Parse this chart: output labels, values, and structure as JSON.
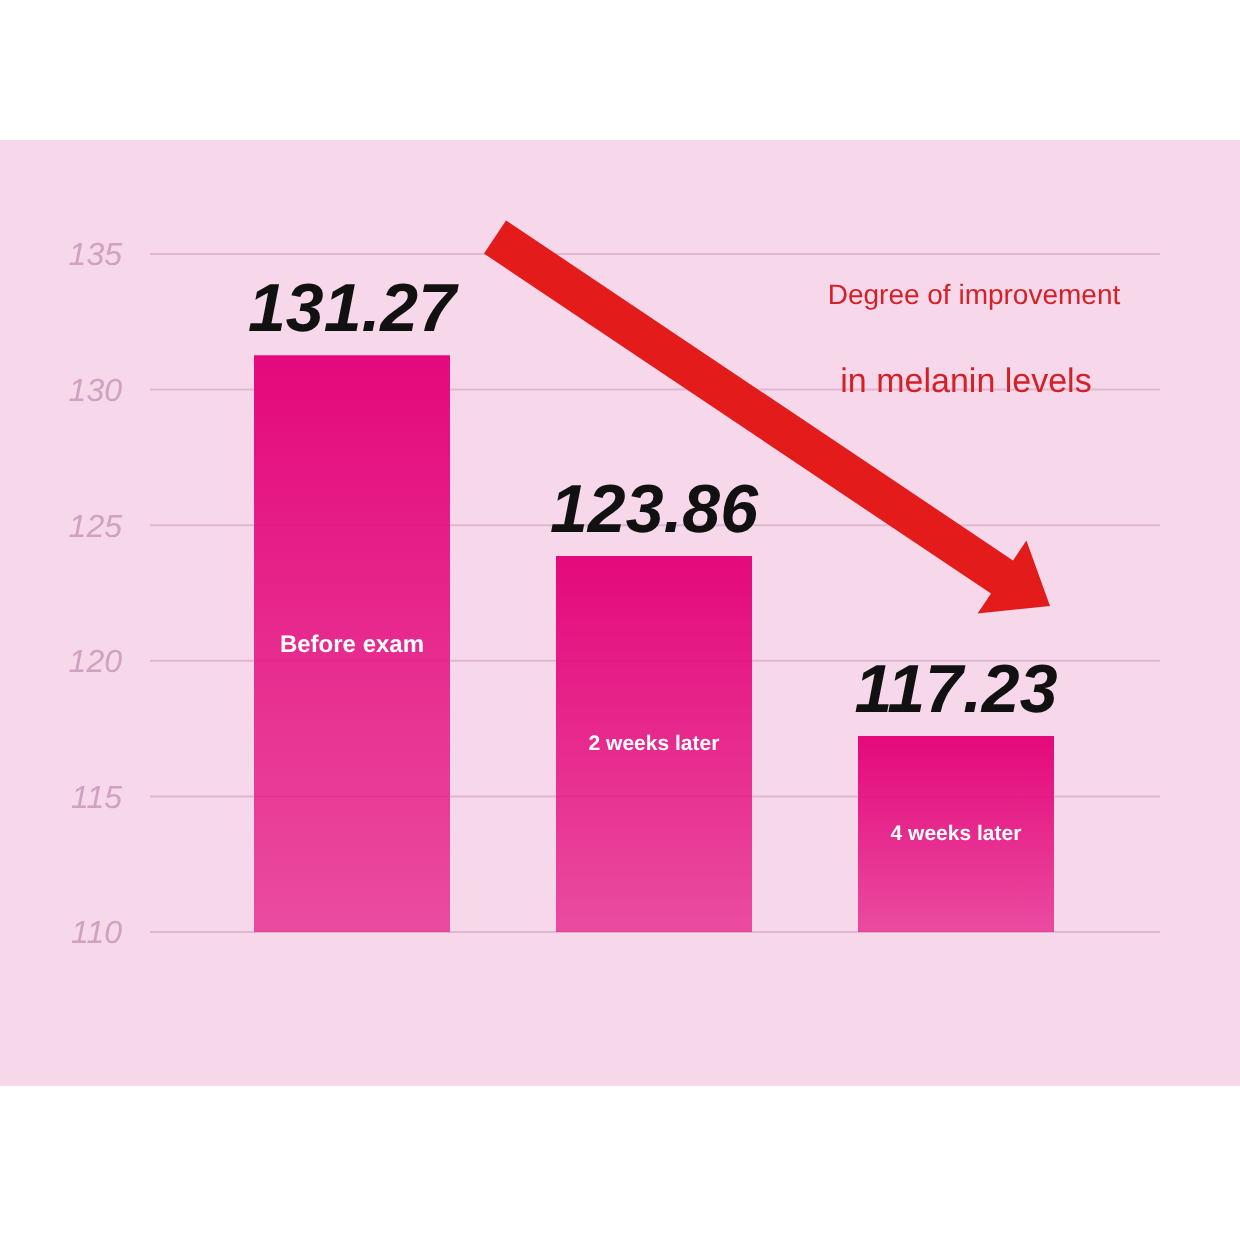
{
  "chart_data": {
    "type": "bar",
    "categories": [
      "Before exam",
      "2 weeks later",
      "4 weeks later"
    ],
    "values": [
      131.27,
      123.86,
      117.23
    ],
    "color": "#e4097c",
    "ylim": [
      110,
      135
    ],
    "yticks": [
      110,
      115,
      120,
      125,
      130,
      135
    ],
    "grid": "y",
    "data_labels": true,
    "annotations": [
      "Degree of improvement",
      "in melanin levels"
    ]
  }
}
